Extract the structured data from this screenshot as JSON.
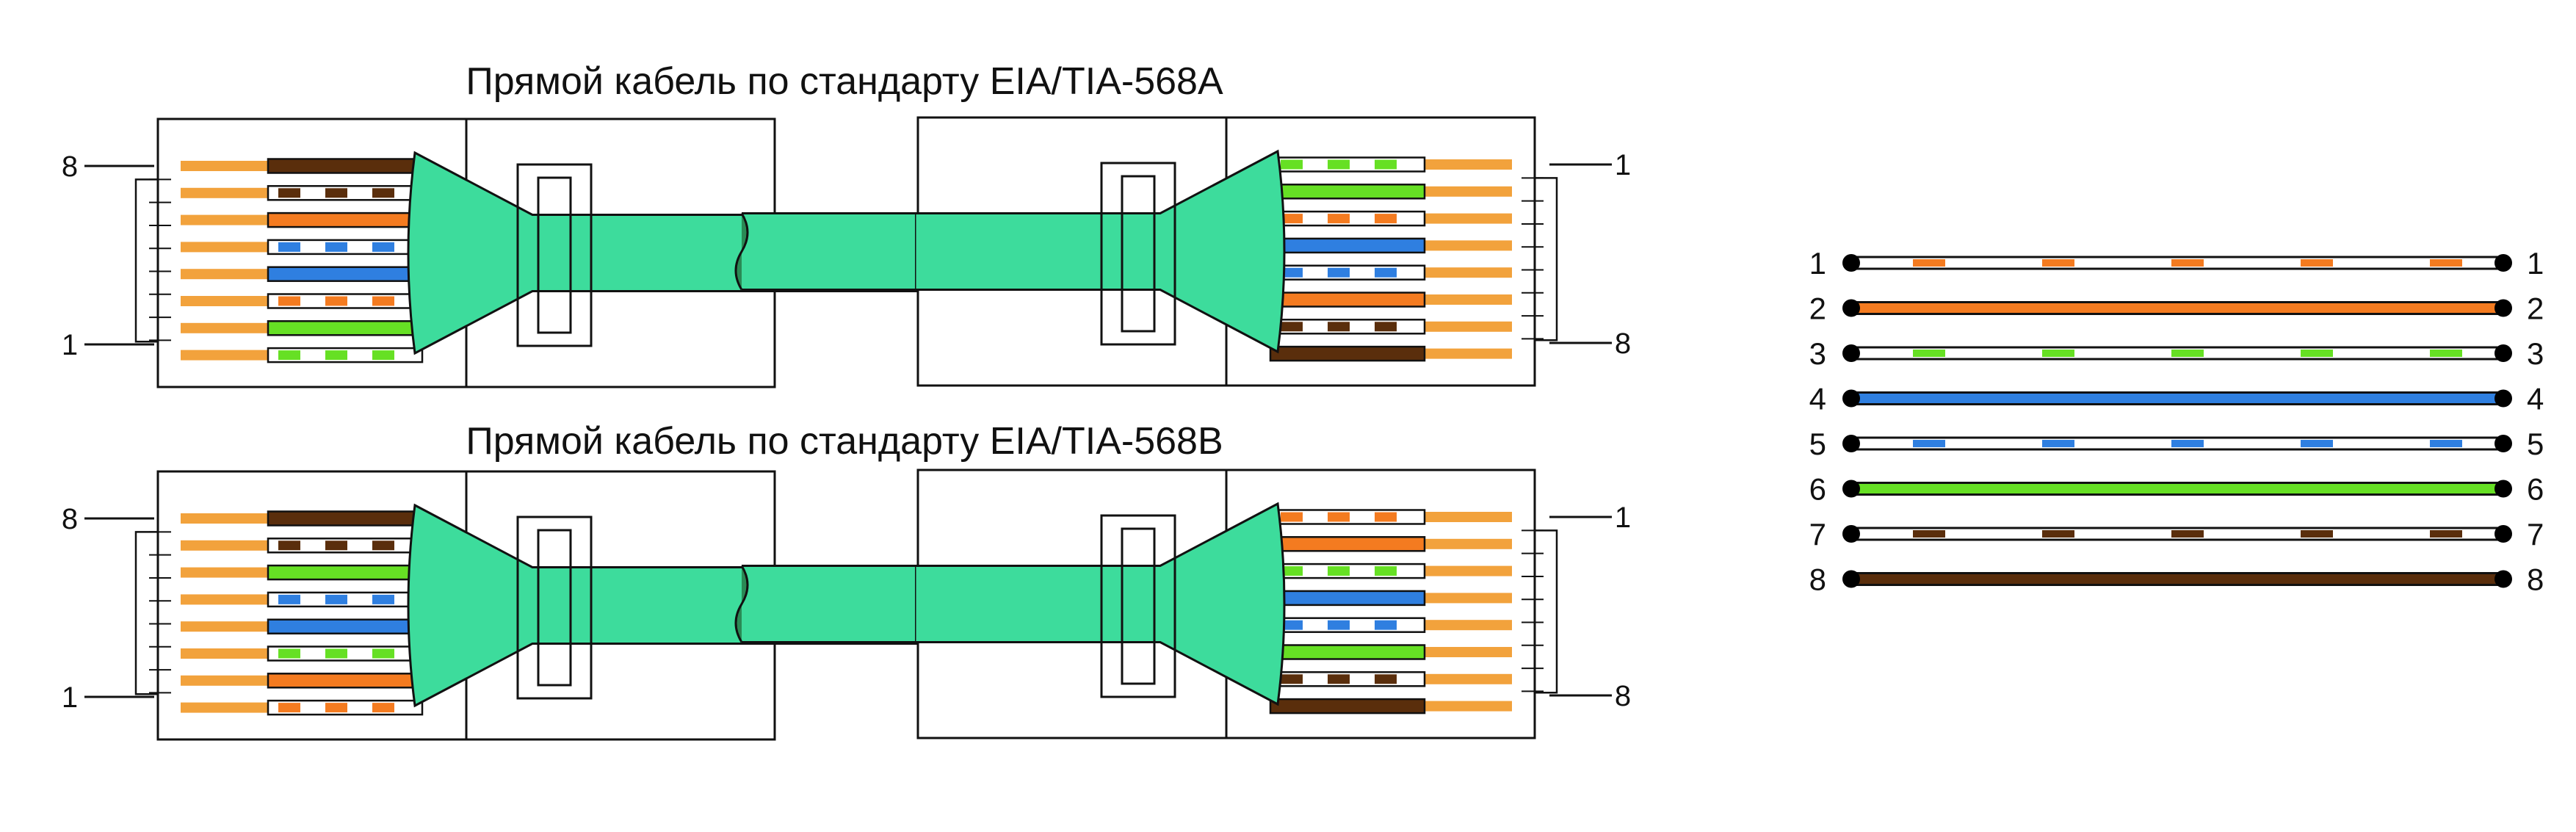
{
  "diagram_a": {
    "title": "Прямой кабель по стандарту EIA/TIA-568A",
    "left_top_pin": "8",
    "left_bottom_pin": "1",
    "right_top_pin": "1",
    "right_bottom_pin": "8",
    "wires_pin1_to_8": [
      "white-green",
      "green",
      "white-orange",
      "blue",
      "white-blue",
      "orange",
      "white-brown",
      "brown"
    ]
  },
  "diagram_b": {
    "title": "Прямой кабель по стандарту EIA/TIA-568B",
    "left_top_pin": "8",
    "left_bottom_pin": "1",
    "right_top_pin": "1",
    "right_bottom_pin": "8",
    "wires_pin1_to_8": [
      "white-orange",
      "orange",
      "white-green",
      "blue",
      "white-blue",
      "green",
      "white-brown",
      "brown"
    ]
  },
  "legend": {
    "rows": [
      {
        "pin": "1",
        "color": "white-orange"
      },
      {
        "pin": "2",
        "color": "orange"
      },
      {
        "pin": "3",
        "color": "white-green"
      },
      {
        "pin": "4",
        "color": "blue"
      },
      {
        "pin": "5",
        "color": "white-blue"
      },
      {
        "pin": "6",
        "color": "green"
      },
      {
        "pin": "7",
        "color": "white-brown"
      },
      {
        "pin": "8",
        "color": "brown"
      }
    ]
  },
  "colors": {
    "orange": "#f47b20",
    "green": "#66e024",
    "blue": "#2f7fe0",
    "brown": "#5a2e0c",
    "jacket": "#3ddc9c",
    "jacket_dark": "#2a8a55",
    "contact": "#f2a23c",
    "outline": "#111111"
  }
}
